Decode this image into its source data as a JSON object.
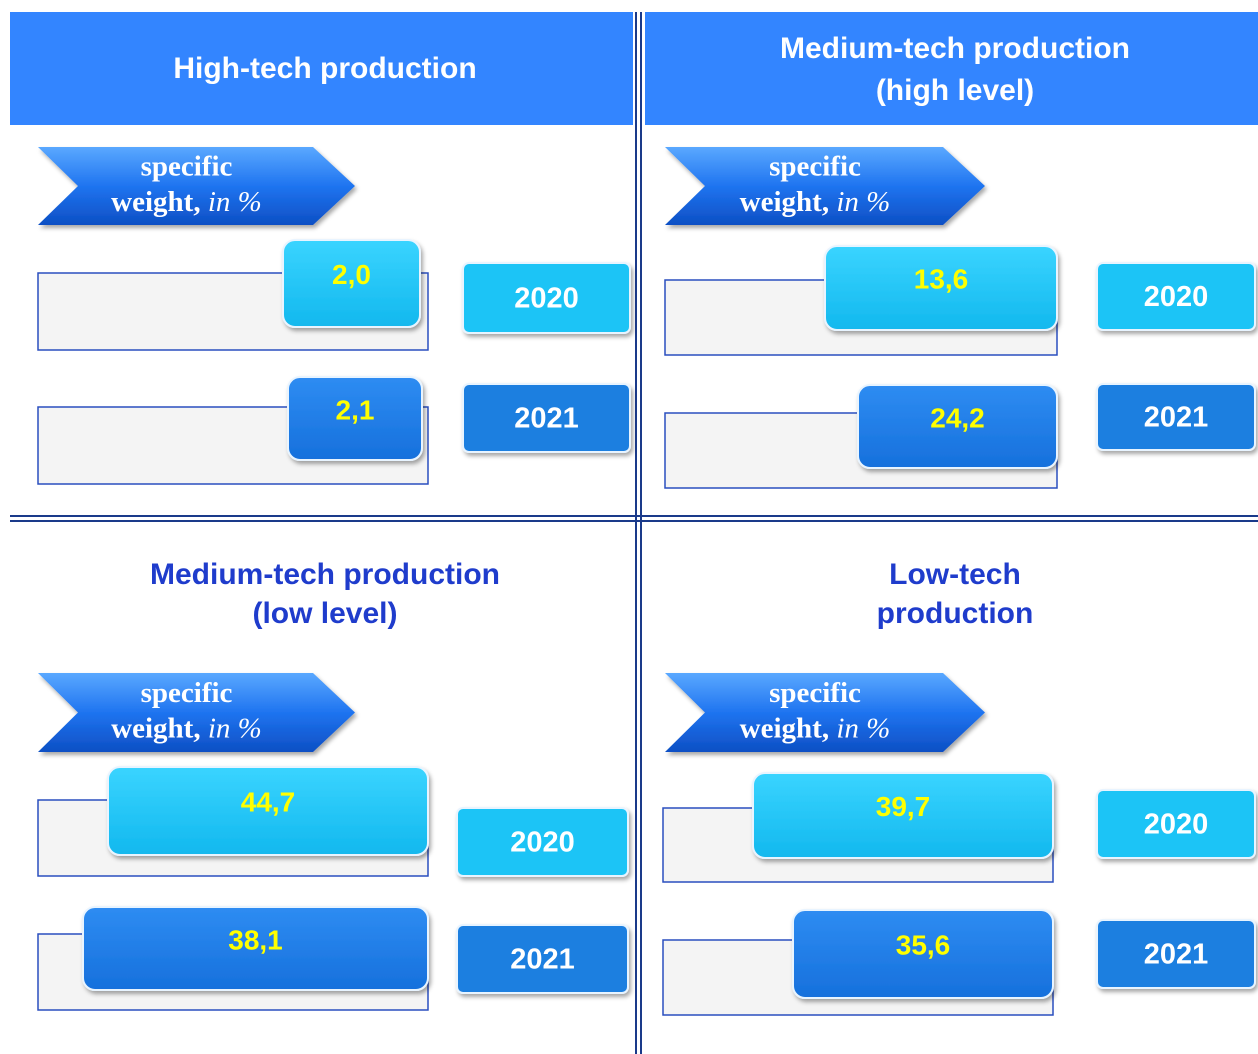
{
  "panels": [
    {
      "title": [
        "High-tech production"
      ],
      "label_bold": "specific",
      "label_bold2": "weight,",
      "label_italic": "in %",
      "rows": [
        {
          "value": "2,0",
          "year": "2020"
        },
        {
          "value": "2,1",
          "year": "2021"
        }
      ]
    },
    {
      "title": [
        "Medium-tech production",
        "(high level)"
      ],
      "label_bold": "specific",
      "label_bold2": "weight,",
      "label_italic": "in %",
      "rows": [
        {
          "value": "13,6",
          "year": "2020"
        },
        {
          "value": "24,2",
          "year": "2021"
        }
      ]
    },
    {
      "title": [
        "Medium-tech production",
        "(low level)"
      ],
      "label_bold": "specific",
      "label_bold2": "weight,",
      "label_italic": "in %",
      "rows": [
        {
          "value": "44,7",
          "year": "2020"
        },
        {
          "value": "38,1",
          "year": "2021"
        }
      ]
    },
    {
      "title": [
        "Low-tech",
        "production"
      ],
      "label_bold": "specific",
      "label_bold2": "weight,",
      "label_italic": "in %",
      "rows": [
        {
          "value": "39,7",
          "year": "2020"
        },
        {
          "value": "35,6",
          "year": "2021"
        }
      ]
    }
  ]
}
